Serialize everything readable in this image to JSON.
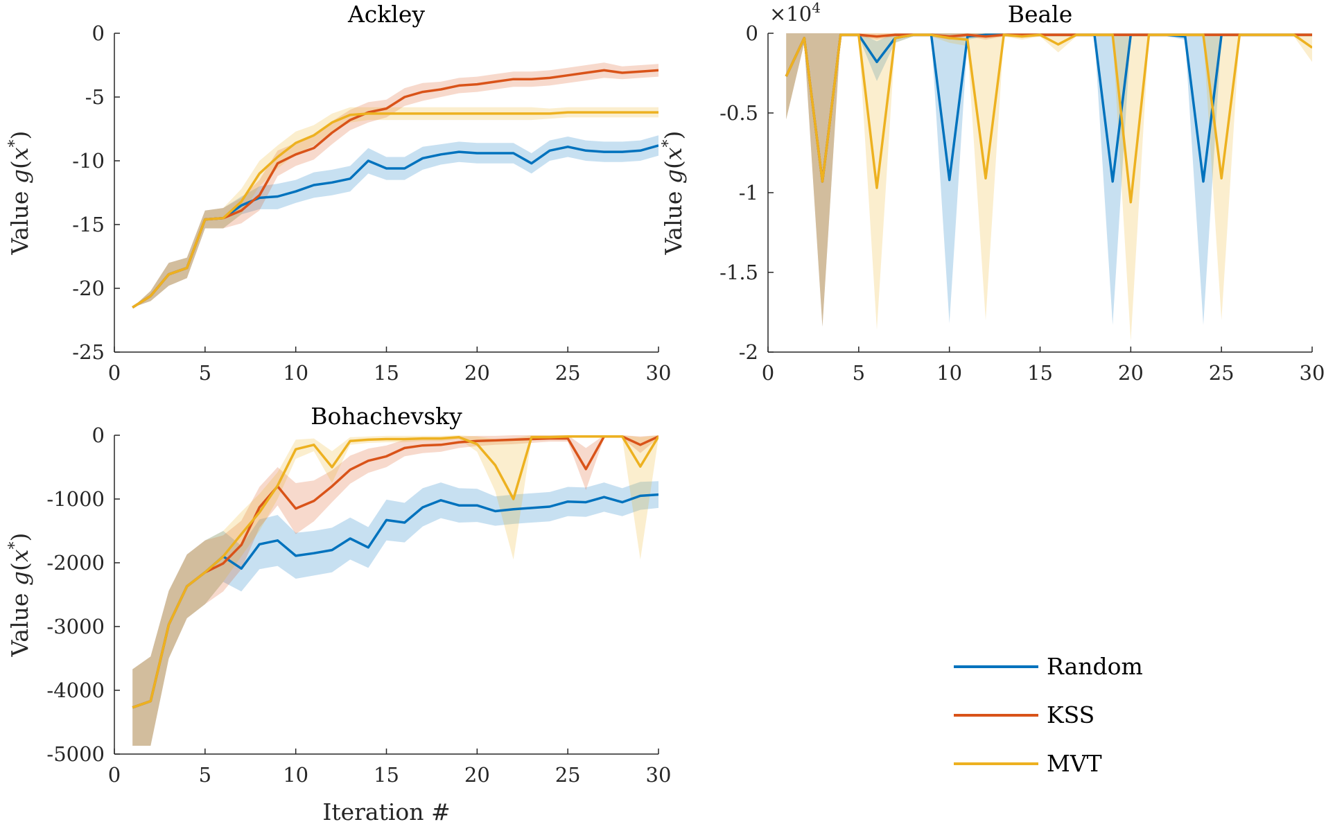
{
  "figure": {
    "shared_xlabel": "Iteration #"
  },
  "legend": {
    "items": [
      {
        "label": "Random",
        "color": "#0072BD"
      },
      {
        "label": "KSS",
        "color": "#D95319"
      },
      {
        "label": "MVT",
        "color": "#EDB120"
      }
    ]
  },
  "chart_data": [
    {
      "type": "line",
      "title": "Ackley",
      "xlabel": "",
      "ylabel": "Value g(x*)",
      "xlim": [
        0,
        30
      ],
      "ylim": [
        -25,
        0
      ],
      "xticks": [
        0,
        5,
        10,
        15,
        20,
        25,
        30
      ],
      "yticks": [
        0,
        -5,
        -10,
        -15,
        -20,
        -25
      ],
      "ytick_labels": [
        "0",
        "-5",
        "-10",
        "-15",
        "-20",
        "-25"
      ],
      "x": [
        1,
        2,
        3,
        4,
        5,
        6,
        7,
        8,
        9,
        10,
        11,
        12,
        13,
        14,
        15,
        16,
        17,
        18,
        19,
        20,
        21,
        22,
        23,
        24,
        25,
        26,
        27,
        28,
        29,
        30
      ],
      "series": [
        {
          "name": "Random",
          "color": "#0072BD",
          "values": [
            -21.5,
            -20.6,
            -18.9,
            -18.4,
            -14.6,
            -14.5,
            -13.5,
            -12.9,
            -12.8,
            -12.4,
            -11.9,
            -11.7,
            -11.4,
            -10,
            -10.6,
            -10.6,
            -9.8,
            -9.5,
            -9.3,
            -9.4,
            -9.4,
            -9.4,
            -10.2,
            -9.2,
            -8.9,
            -9.2,
            -9.3,
            -9.3,
            -9.2,
            -8.8
          ],
          "band_lower": [
            -21.5,
            -21,
            -19.8,
            -19.2,
            -15.3,
            -15.3,
            -14.2,
            -13.8,
            -13.8,
            -13.3,
            -12.9,
            -12.7,
            -12.4,
            -11,
            -11.5,
            -11.5,
            -10.7,
            -10.3,
            -10.1,
            -10.2,
            -10.2,
            -10.2,
            -11,
            -10,
            -9.7,
            -10,
            -10.1,
            -10.1,
            -10,
            -9.6
          ],
          "band_upper": [
            -21.5,
            -20.2,
            -18,
            -17.6,
            -13.9,
            -13.7,
            -12.8,
            -12,
            -11.8,
            -11.5,
            -10.9,
            -10.7,
            -10.4,
            -9,
            -9.7,
            -9.7,
            -8.9,
            -8.7,
            -8.5,
            -8.6,
            -8.6,
            -8.6,
            -9.4,
            -8.4,
            -8.1,
            -8.4,
            -8.5,
            -8.5,
            -8.4,
            -8
          ]
        },
        {
          "name": "KSS",
          "color": "#D95319",
          "values": [
            -21.5,
            -20.6,
            -18.9,
            -18.4,
            -14.6,
            -14.5,
            -13.9,
            -12.7,
            -10.2,
            -9.5,
            -9,
            -7.8,
            -6.8,
            -6.2,
            -5.9,
            -5,
            -4.6,
            -4.4,
            -4.1,
            -4,
            -3.8,
            -3.6,
            -3.6,
            -3.5,
            -3.3,
            -3.1,
            -2.9,
            -3.1,
            -3,
            -2.9
          ],
          "band_lower": [
            -21.5,
            -21,
            -19.8,
            -19.2,
            -15.3,
            -15.3,
            -14.9,
            -13.9,
            -11.2,
            -10.4,
            -9.9,
            -8.7,
            -7.6,
            -7,
            -6.6,
            -5.7,
            -5.3,
            -5,
            -4.7,
            -4.6,
            -4.4,
            -4.2,
            -4.2,
            -4.1,
            -3.9,
            -3.7,
            -3.5,
            -3.6,
            -3.5,
            -3.4
          ],
          "band_upper": [
            -21.5,
            -20.2,
            -18,
            -17.6,
            -13.9,
            -13.7,
            -12.9,
            -11.5,
            -9.2,
            -8.6,
            -8.1,
            -6.9,
            -6,
            -5.4,
            -5.2,
            -4.3,
            -3.9,
            -3.8,
            -3.5,
            -3.4,
            -3.2,
            -3,
            -3,
            -2.9,
            -2.7,
            -2.5,
            -2.3,
            -2.6,
            -2.5,
            -2.4
          ]
        },
        {
          "name": "MVT",
          "color": "#EDB120",
          "values": [
            -21.5,
            -20.6,
            -18.9,
            -18.4,
            -14.6,
            -14.5,
            -13.2,
            -11,
            -9.7,
            -8.6,
            -8,
            -7,
            -6.4,
            -6.3,
            -6.3,
            -6.3,
            -6.3,
            -6.3,
            -6.3,
            -6.3,
            -6.3,
            -6.3,
            -6.3,
            -6.3,
            -6.2,
            -6.2,
            -6.2,
            -6.2,
            -6.2,
            -6.2
          ],
          "band_lower": [
            -21.5,
            -21,
            -19.8,
            -19.2,
            -15.3,
            -15.3,
            -14.2,
            -12,
            -10.6,
            -9.5,
            -8.8,
            -7.7,
            -7,
            -6.8,
            -6.8,
            -6.8,
            -6.8,
            -6.8,
            -6.8,
            -6.8,
            -6.8,
            -6.8,
            -6.8,
            -6.7,
            -6.6,
            -6.6,
            -6.6,
            -6.6,
            -6.6,
            -6.6
          ],
          "band_upper": [
            -21.5,
            -20.2,
            -18,
            -17.6,
            -13.9,
            -13.7,
            -12.2,
            -10,
            -8.8,
            -7.7,
            -7.2,
            -6.3,
            -5.8,
            -5.8,
            -5.8,
            -5.8,
            -5.8,
            -5.8,
            -5.8,
            -5.8,
            -5.8,
            -5.8,
            -5.8,
            -5.9,
            -5.8,
            -5.8,
            -5.8,
            -5.8,
            -5.8,
            -5.8
          ]
        }
      ]
    },
    {
      "type": "line",
      "title": "Beale",
      "xlabel": "",
      "ylabel": "Value g(x*)",
      "y_exponent_label": "×10",
      "y_exponent_power": "4",
      "xlim": [
        0,
        30
      ],
      "ylim": [
        -2,
        0
      ],
      "xticks": [
        0,
        5,
        10,
        15,
        20,
        25,
        30
      ],
      "yticks": [
        0,
        -0.5,
        -1,
        -1.5,
        -2
      ],
      "ytick_labels": [
        "0",
        "-0.5",
        "-1",
        "-1.5",
        "-2"
      ],
      "x": [
        1,
        2,
        3,
        4,
        5,
        6,
        7,
        8,
        9,
        10,
        11,
        12,
        13,
        14,
        15,
        16,
        17,
        18,
        19,
        20,
        21,
        22,
        23,
        24,
        25,
        26,
        27,
        28,
        29,
        30
      ],
      "series": [
        {
          "name": "Random",
          "color": "#0072BD",
          "values": [
            -0.27,
            -0.03,
            -0.93,
            -0.01,
            -0.01,
            -0.18,
            -0.03,
            -0.01,
            -0.01,
            -0.92,
            -0.02,
            -0.01,
            -0.01,
            -0.01,
            -0.01,
            -0.01,
            -0.01,
            -0.01,
            -0.93,
            -0.01,
            -0.01,
            -0.01,
            -0.02,
            -0.93,
            -0.01,
            -0.01,
            -0.01,
            -0.01,
            -0.01,
            -0.01
          ],
          "band_lower": [
            -0.54,
            -0.06,
            -1.84,
            -0.02,
            -0.02,
            -0.3,
            -0.06,
            -0.02,
            -0.02,
            -1.82,
            -0.04,
            -0.02,
            -0.02,
            -0.02,
            -0.02,
            -0.02,
            -0.02,
            -0.02,
            -1.83,
            -0.02,
            -0.02,
            -0.02,
            -0.04,
            -1.83,
            -0.02,
            -0.02,
            -0.02,
            -0.02,
            -0.02,
            -0.02
          ],
          "band_upper": [
            0,
            0,
            0,
            0,
            0,
            -0.05,
            0,
            0,
            0,
            0,
            0,
            0,
            0,
            0,
            0,
            0,
            0,
            0,
            0,
            0,
            0,
            0,
            0,
            0,
            0,
            0,
            0,
            0,
            0,
            0
          ]
        },
        {
          "name": "KSS",
          "color": "#D95319",
          "values": [
            -0.27,
            -0.03,
            -0.93,
            -0.01,
            -0.01,
            -0.02,
            -0.01,
            -0.01,
            -0.01,
            -0.02,
            -0.01,
            -0.02,
            -0.01,
            -0.01,
            -0.01,
            -0.01,
            -0.01,
            -0.01,
            -0.01,
            -0.01,
            -0.01,
            -0.01,
            -0.01,
            -0.01,
            -0.01,
            -0.01,
            -0.01,
            -0.01,
            -0.01,
            -0.01
          ],
          "band_lower": [
            -0.54,
            -0.06,
            -1.84,
            -0.02,
            -0.02,
            -0.04,
            -0.02,
            -0.02,
            -0.02,
            -0.04,
            -0.02,
            -0.04,
            -0.02,
            -0.02,
            -0.02,
            -0.02,
            -0.02,
            -0.02,
            -0.02,
            -0.02,
            -0.02,
            -0.02,
            -0.02,
            -0.02,
            -0.02,
            -0.02,
            -0.02,
            -0.02,
            -0.02,
            -0.02
          ],
          "band_upper": [
            0,
            0,
            0,
            0,
            0,
            0,
            0,
            0,
            0,
            0,
            0,
            0,
            0,
            0,
            0,
            0,
            0,
            0,
            0,
            0,
            0,
            0,
            0,
            0,
            0,
            0,
            0,
            0,
            0,
            0
          ]
        },
        {
          "name": "MVT",
          "color": "#EDB120",
          "values": [
            -0.27,
            -0.03,
            -0.93,
            -0.01,
            -0.01,
            -0.97,
            -0.03,
            -0.01,
            -0.01,
            -0.03,
            -0.04,
            -0.91,
            -0.01,
            -0.02,
            -0.01,
            -0.07,
            -0.01,
            -0.01,
            -0.01,
            -1.06,
            -0.01,
            -0.01,
            -0.01,
            -0.01,
            -0.91,
            -0.01,
            -0.01,
            -0.01,
            -0.01,
            -0.09
          ],
          "band_lower": [
            -0.54,
            -0.06,
            -1.84,
            -0.02,
            -0.02,
            -1.86,
            -0.06,
            -0.02,
            -0.02,
            -0.06,
            -0.08,
            -1.8,
            -0.02,
            -0.04,
            -0.02,
            -0.12,
            -0.02,
            -0.02,
            -0.02,
            -1.93,
            -0.02,
            -0.02,
            -0.02,
            -0.02,
            -1.8,
            -0.02,
            -0.02,
            -0.02,
            -0.02,
            -0.18
          ],
          "band_upper": [
            0,
            0,
            0,
            0,
            0,
            0,
            0,
            0,
            0,
            0,
            0,
            0,
            0,
            0,
            0,
            0,
            0,
            0,
            0,
            0,
            0,
            0,
            0,
            0,
            0,
            0,
            0,
            0,
            0,
            0
          ]
        }
      ]
    },
    {
      "type": "line",
      "title": "Bohachevsky",
      "xlabel": "Iteration #",
      "ylabel": "Value g(x*)",
      "xlim": [
        0,
        30
      ],
      "ylim": [
        -5000,
        0
      ],
      "xticks": [
        0,
        5,
        10,
        15,
        20,
        25,
        30
      ],
      "yticks": [
        0,
        -1000,
        -2000,
        -3000,
        -4000,
        -5000
      ],
      "ytick_labels": [
        "0",
        "-1000",
        "-2000",
        "-3000",
        "-4000",
        "-5000"
      ],
      "x": [
        1,
        2,
        3,
        4,
        5,
        6,
        7,
        8,
        9,
        10,
        11,
        12,
        13,
        14,
        15,
        16,
        17,
        18,
        19,
        20,
        21,
        22,
        23,
        24,
        25,
        26,
        27,
        28,
        29,
        30
      ],
      "series": [
        {
          "name": "Random",
          "color": "#0072BD",
          "values": [
            -4270,
            -4170,
            -2970,
            -2370,
            -2150,
            -1900,
            -2090,
            -1710,
            -1650,
            -1890,
            -1850,
            -1800,
            -1620,
            -1760,
            -1330,
            -1370,
            -1130,
            -1020,
            -1100,
            -1100,
            -1190,
            -1160,
            -1140,
            -1120,
            -1040,
            -1050,
            -970,
            -1050,
            -950,
            -930
          ],
          "band_lower": [
            -4870,
            -4870,
            -3500,
            -2870,
            -2650,
            -2300,
            -2450,
            -2100,
            -2050,
            -2250,
            -2200,
            -2150,
            -1950,
            -2080,
            -1650,
            -1680,
            -1430,
            -1300,
            -1370,
            -1360,
            -1420,
            -1390,
            -1370,
            -1350,
            -1270,
            -1280,
            -1200,
            -1270,
            -1170,
            -1140
          ],
          "band_upper": [
            -3670,
            -3470,
            -2440,
            -1870,
            -1650,
            -1500,
            -1730,
            -1320,
            -1250,
            -1530,
            -1500,
            -1450,
            -1290,
            -1440,
            -1010,
            -1060,
            -830,
            -740,
            -830,
            -840,
            -960,
            -930,
            -910,
            -890,
            -810,
            -820,
            -740,
            -830,
            -730,
            -720
          ]
        },
        {
          "name": "KSS",
          "color": "#D95319",
          "values": [
            -4270,
            -4170,
            -2970,
            -2370,
            -2150,
            -2010,
            -1720,
            -1130,
            -800,
            -1150,
            -1030,
            -800,
            -540,
            -400,
            -330,
            -200,
            -160,
            -150,
            -110,
            -90,
            -80,
            -70,
            -60,
            -50,
            -50,
            -530,
            -20,
            -20,
            -150,
            -20
          ],
          "band_lower": [
            -4870,
            -4870,
            -3500,
            -2870,
            -2650,
            -2450,
            -2100,
            -1450,
            -1100,
            -1550,
            -1350,
            -1050,
            -760,
            -590,
            -500,
            -330,
            -280,
            -260,
            -200,
            -170,
            -150,
            -140,
            -120,
            -100,
            -100,
            -860,
            -40,
            -40,
            -280,
            -40
          ],
          "band_upper": [
            -3670,
            -3470,
            -2440,
            -1870,
            -1650,
            -1570,
            -1340,
            -810,
            -500,
            -750,
            -710,
            -550,
            -320,
            -210,
            -160,
            -70,
            -40,
            -40,
            -20,
            -10,
            -10,
            0,
            0,
            0,
            0,
            -200,
            0,
            0,
            -20,
            0
          ]
        },
        {
          "name": "MVT",
          "color": "#EDB120",
          "values": [
            -4270,
            -4170,
            -2970,
            -2370,
            -2150,
            -1900,
            -1550,
            -1210,
            -790,
            -220,
            -150,
            -500,
            -90,
            -70,
            -60,
            -60,
            -50,
            -50,
            -30,
            -140,
            -470,
            -1000,
            -30,
            -30,
            -20,
            -20,
            -20,
            -20,
            -490,
            -20
          ],
          "band_lower": [
            -4870,
            -4870,
            -3500,
            -2870,
            -2650,
            -2300,
            -1900,
            -1500,
            -1000,
            -370,
            -250,
            -750,
            -150,
            -120,
            -110,
            -110,
            -90,
            -90,
            -60,
            -260,
            -880,
            -1950,
            -60,
            -60,
            -40,
            -40,
            -40,
            -40,
            -1950,
            -40
          ],
          "band_upper": [
            -3670,
            -3470,
            -2440,
            -1870,
            -1650,
            -1500,
            -1200,
            -920,
            -580,
            -70,
            -50,
            -250,
            -30,
            -20,
            -10,
            -10,
            -10,
            -10,
            0,
            -20,
            -60,
            -50,
            0,
            0,
            0,
            0,
            0,
            0,
            -30,
            0
          ]
        }
      ]
    }
  ]
}
